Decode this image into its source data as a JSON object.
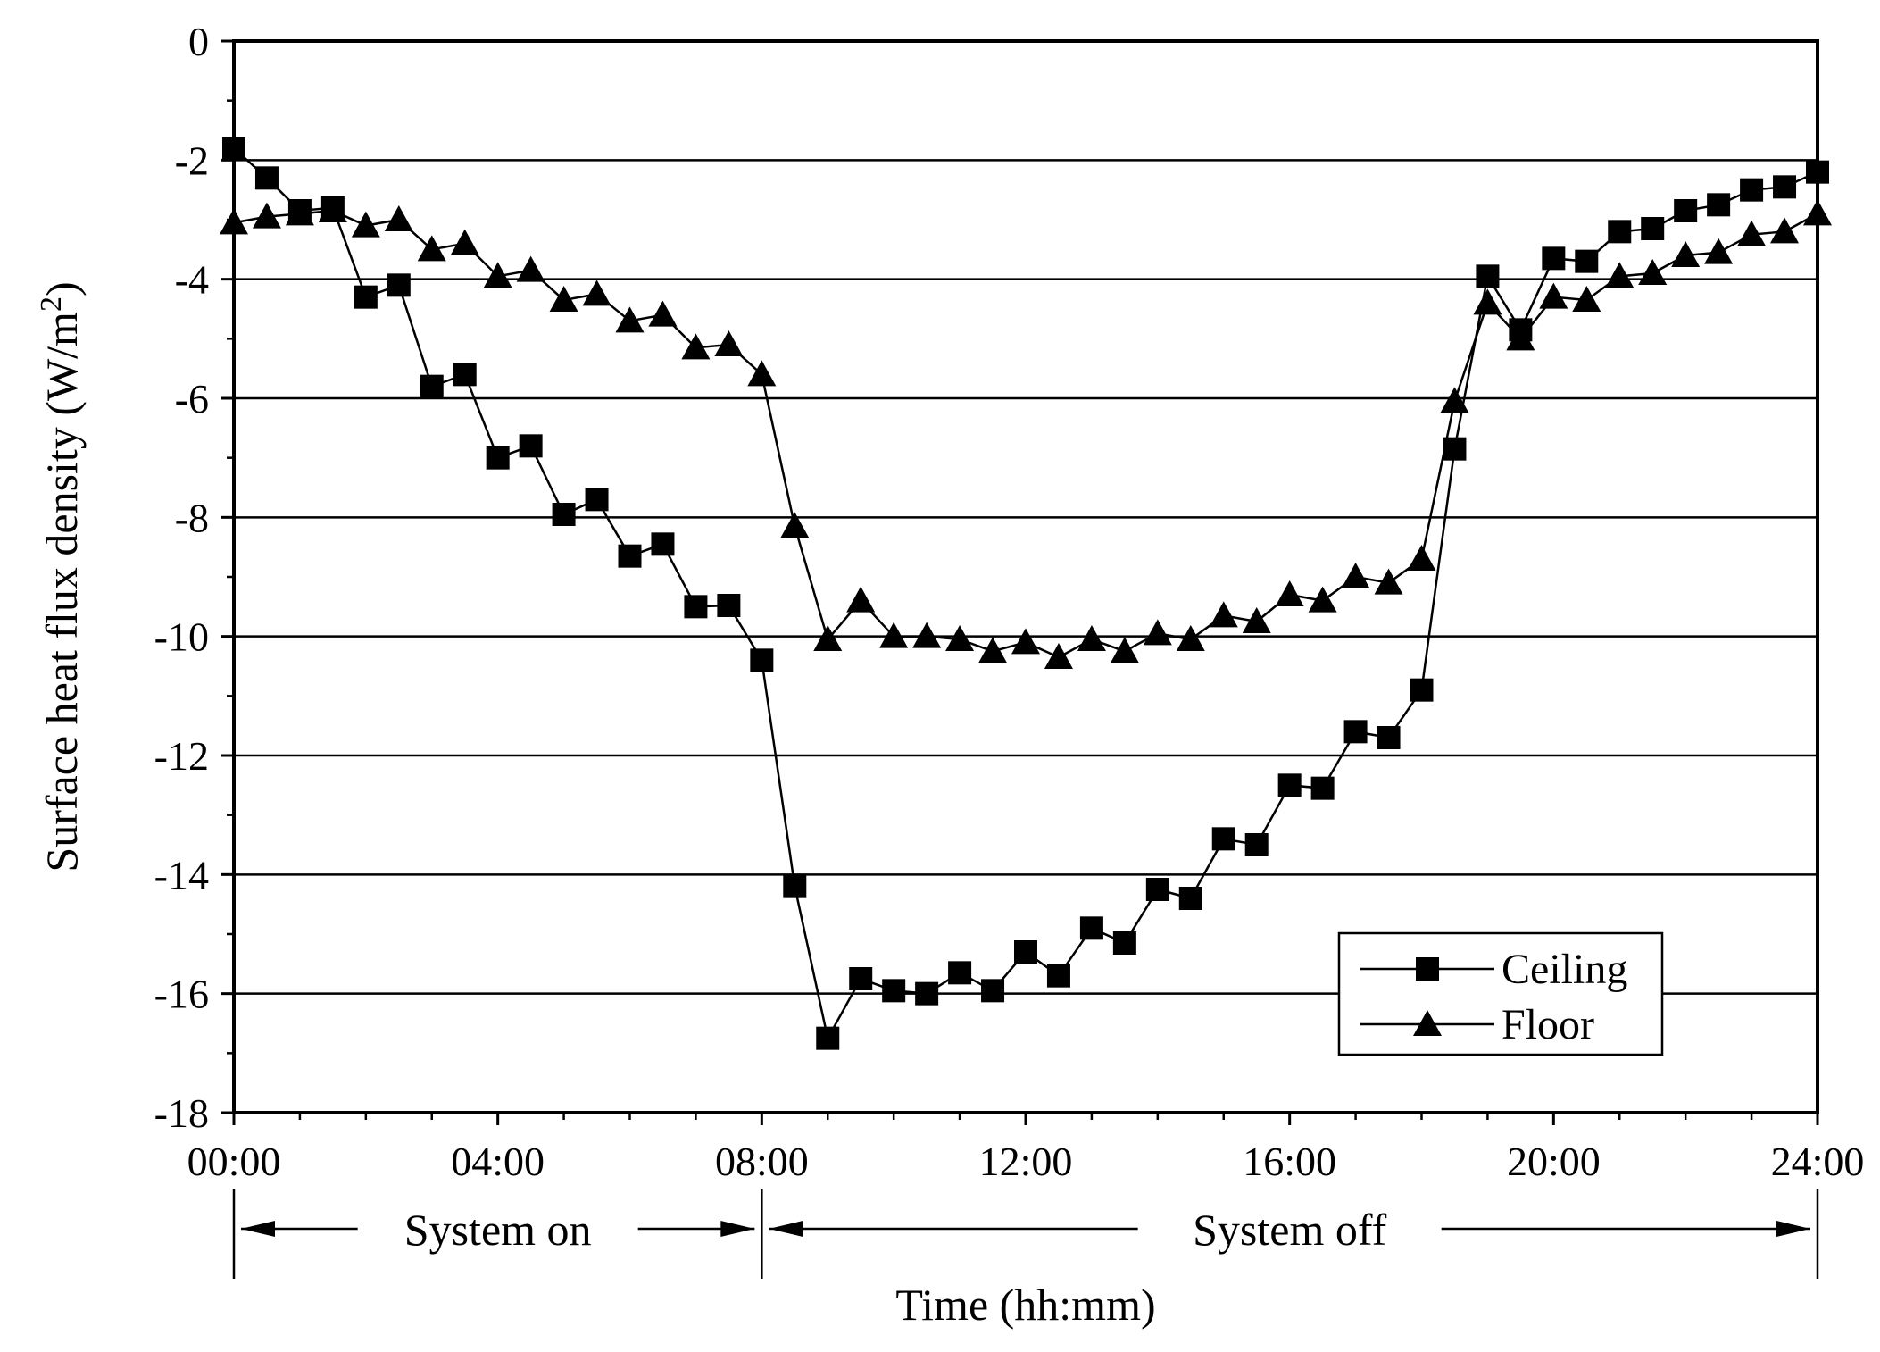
{
  "chart_data": {
    "type": "line",
    "title": "",
    "xlabel": "Time (hh:mm)",
    "ylabel": "Surface heat flux density (W/m",
    "ylabel_sup": "2",
    "ylabel_end": ")",
    "xlim": [
      0,
      24
    ],
    "ylim": [
      -18,
      0
    ],
    "grid": "horizontal",
    "legend_position": "bottom-right",
    "x_ticks": [
      {
        "value": 0,
        "label": "00:00"
      },
      {
        "value": 4,
        "label": "04:00"
      },
      {
        "value": 8,
        "label": "08:00"
      },
      {
        "value": 12,
        "label": "12:00"
      },
      {
        "value": 16,
        "label": "16:00"
      },
      {
        "value": 20,
        "label": "20:00"
      },
      {
        "value": 24,
        "label": "24:00"
      }
    ],
    "y_ticks": [
      {
        "value": 0,
        "label": "0"
      },
      {
        "value": -2,
        "label": "-2"
      },
      {
        "value": -4,
        "label": "-4"
      },
      {
        "value": -6,
        "label": "-6"
      },
      {
        "value": -8,
        "label": "-8"
      },
      {
        "value": -10,
        "label": "-10"
      },
      {
        "value": -12,
        "label": "-12"
      },
      {
        "value": -14,
        "label": "-14"
      },
      {
        "value": -16,
        "label": "-16"
      },
      {
        "value": -18,
        "label": "-18"
      }
    ],
    "x": [
      0,
      0.5,
      1,
      1.5,
      2,
      2.5,
      3,
      3.5,
      4,
      4.5,
      5,
      5.5,
      6,
      6.5,
      7,
      7.5,
      8,
      8.5,
      9,
      9.5,
      10,
      10.5,
      11,
      11.5,
      12,
      12.5,
      13,
      13.5,
      14,
      14.5,
      15,
      15.5,
      16,
      16.5,
      17,
      17.5,
      18,
      18.5,
      19,
      19.5,
      20,
      20.5,
      21,
      21.5,
      22,
      22.5,
      23,
      23.5,
      24
    ],
    "series": [
      {
        "name": "Ceiling",
        "marker": "square",
        "values": [
          -1.8,
          -2.3,
          -2.85,
          -2.8,
          -4.3,
          -4.1,
          -5.8,
          -5.6,
          -7.0,
          -6.8,
          -7.95,
          -7.7,
          -8.65,
          -8.45,
          -9.5,
          -9.48,
          -10.4,
          -14.2,
          -16.75,
          -15.75,
          -15.95,
          -16.0,
          -15.65,
          -15.95,
          -15.3,
          -15.7,
          -14.9,
          -15.15,
          -14.25,
          -14.4,
          -13.4,
          -13.5,
          -12.5,
          -12.55,
          -11.6,
          -11.7,
          -10.9,
          -6.85,
          -3.95,
          -4.85,
          -3.65,
          -3.7,
          -3.2,
          -3.15,
          -2.85,
          -2.75,
          -2.5,
          -2.45,
          -2.2
        ]
      },
      {
        "name": "Floor",
        "marker": "triangle",
        "values": [
          -3.05,
          -2.95,
          -2.9,
          -2.85,
          -3.1,
          -3.0,
          -3.5,
          -3.4,
          -3.95,
          -3.85,
          -4.35,
          -4.25,
          -4.7,
          -4.6,
          -5.15,
          -5.1,
          -5.6,
          -8.15,
          -10.05,
          -9.4,
          -10.0,
          -10.0,
          -10.05,
          -10.25,
          -10.1,
          -10.35,
          -10.05,
          -10.25,
          -9.95,
          -10.05,
          -9.65,
          -9.75,
          -9.3,
          -9.4,
          -9.0,
          -9.1,
          -8.7,
          -6.05,
          -4.4,
          -5.0,
          -4.3,
          -4.35,
          -3.95,
          -3.9,
          -3.6,
          -3.55,
          -3.25,
          -3.2,
          -2.9
        ]
      }
    ],
    "annotations": {
      "phases": [
        {
          "label": "System on",
          "from": 0,
          "to": 8
        },
        {
          "label": "System off",
          "from": 8,
          "to": 24
        }
      ]
    }
  }
}
